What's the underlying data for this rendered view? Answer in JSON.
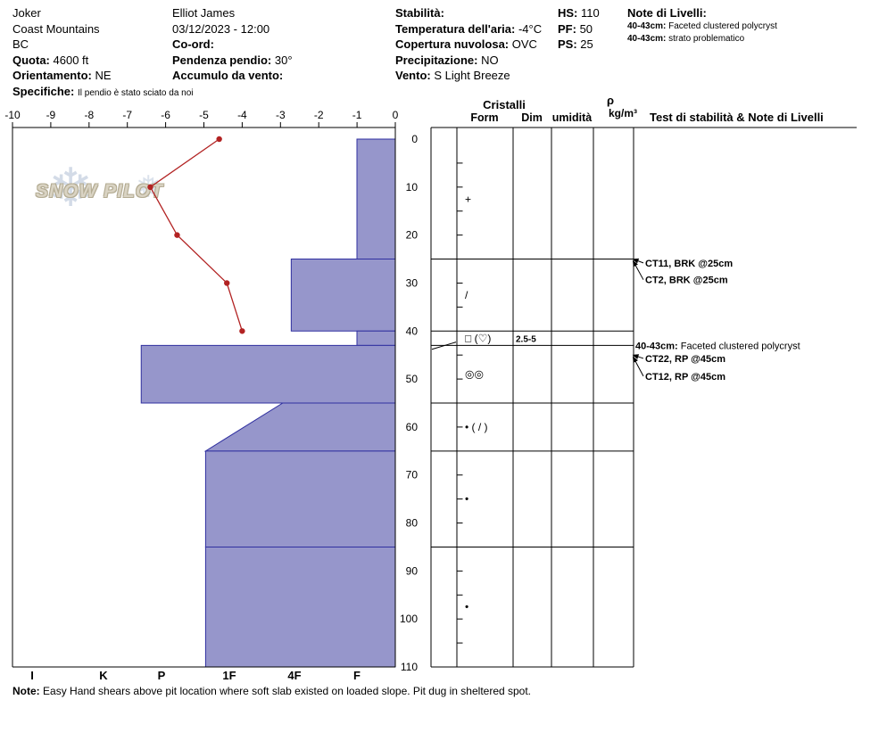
{
  "header": {
    "col1": {
      "pit_name": "Joker",
      "range": "Coast Mountains",
      "region": "BC",
      "quota_label": "Quota:",
      "quota_value": "4600 ft",
      "orient_label": "Orientamento:",
      "orient_value": "NE",
      "spec_label": "Specifiche:",
      "spec_value": "Il pendio è stato sciato da noi"
    },
    "col2": {
      "observer": "Elliot James",
      "datetime": "03/12/2023 - 12:00",
      "coord_label": "Co-ord:",
      "slope_label": "Pendenza pendio:",
      "slope_value": "30°",
      "windload_label": "Accumulo da vento:"
    },
    "col3": {
      "stability_label": "Stabilità:",
      "airtemp_label": "Temperatura dell'aria:",
      "airtemp_value": "-4°C",
      "cloud_label": "Copertura nuvolosa:",
      "cloud_value": "OVC",
      "precip_label": "Precipitazione:",
      "precip_value": "NO",
      "wind_label": "Vento:",
      "wind_value": "S Light Breeze"
    },
    "col4": {
      "hs_label": "HS:",
      "hs_value": "110",
      "pf_label": "PF:",
      "pf_value": "50",
      "ps_label": "PS:",
      "ps_value": "25"
    },
    "col5": {
      "title": "Note di Livelli:",
      "notes": [
        {
          "range": "40-43cm:",
          "text": "Faceted clustered polycryst"
        },
        {
          "range": "40-43cm:",
          "text": "strato problematico"
        }
      ]
    }
  },
  "logo": {
    "text": "SNOW PILOT"
  },
  "chart_data": {
    "type": "snow-profile",
    "hs_cm": 110,
    "temp_axis": {
      "unit": "°C",
      "min": -10,
      "max": 0,
      "ticks": [
        -10,
        -9,
        -8,
        -7,
        -6,
        -5,
        -4,
        -3,
        -2,
        -1,
        0
      ]
    },
    "depth_axis": {
      "unit": "cm",
      "min": 0,
      "max": 110,
      "labels": [
        0,
        10,
        20,
        30,
        40,
        50,
        60,
        70,
        80,
        90,
        100,
        110
      ]
    },
    "hardness_axis": {
      "categories": [
        "I",
        "K",
        "P",
        "1F",
        "4F",
        "F"
      ]
    },
    "layers": [
      {
        "top_cm": 0,
        "bottom_cm": 25,
        "hardness": "F",
        "h_top": 5.0,
        "h_bottom": 5.0
      },
      {
        "top_cm": 25,
        "bottom_cm": 40,
        "hardness": "4F",
        "h_top": 3.95,
        "h_bottom": 3.95
      },
      {
        "top_cm": 40,
        "bottom_cm": 43,
        "hardness": "F",
        "h_top": 5.0,
        "h_bottom": 5.0
      },
      {
        "top_cm": 43,
        "bottom_cm": 55,
        "hardness": "P+",
        "h_top": 1.65,
        "h_bottom": 1.65
      },
      {
        "top_cm": 55,
        "bottom_cm": 65,
        "hardness": "4F- / 1F+",
        "h_top": 3.82,
        "h_bottom": 2.65
      },
      {
        "top_cm": 65,
        "bottom_cm": 85,
        "hardness": "1F+",
        "h_top": 2.65,
        "h_bottom": 2.65
      },
      {
        "top_cm": 85,
        "bottom_cm": 110,
        "hardness": "1F+",
        "h_top": 2.65,
        "h_bottom": 2.65
      }
    ],
    "crystals": [
      {
        "form": "+",
        "dim": ""
      },
      {
        "form": "/",
        "dim": ""
      },
      {
        "form": "□ (♡)",
        "dim": "2.5-5"
      },
      {
        "form": "◎◎",
        "dim": ""
      },
      {
        "form": "• ( / )",
        "dim": ""
      },
      {
        "form": "•",
        "dim": ""
      },
      {
        "form": "•",
        "dim": ""
      }
    ],
    "temperature_profile": [
      {
        "depth_cm": 0,
        "temp_c": -4.6
      },
      {
        "depth_cm": 10,
        "temp_c": -6.4
      },
      {
        "depth_cm": 20,
        "temp_c": -5.7
      },
      {
        "depth_cm": 30,
        "temp_c": -4.4
      },
      {
        "depth_cm": 40,
        "temp_c": -4.0
      }
    ],
    "columns": {
      "cristalli": "Cristalli",
      "form": "Form",
      "dim": "Dim",
      "humidity": "umidità",
      "rho": "ρ",
      "rho_unit": "kg/m³",
      "tests": "Test di stabilità & Note di Livelli"
    },
    "tests": [
      {
        "kind": "arrow",
        "label": "CT11, BRK @25cm",
        "text_depth": 25.8,
        "target_depth": 25.0
      },
      {
        "kind": "arrow",
        "label": "CT2, BRK @25cm",
        "text_depth": 29.3,
        "target_depth": 25.4
      },
      {
        "kind": "note",
        "bold": "40-43cm:",
        "label": "Faceted clustered polycryst",
        "text_depth": 43.0,
        "leader": true
      },
      {
        "kind": "arrow",
        "label": "CT22, RP @45cm",
        "text_depth": 45.7,
        "target_depth": 45.0
      },
      {
        "kind": "arrow",
        "label": "CT12, RP @45cm",
        "text_depth": 49.4,
        "target_depth": 45.4
      }
    ],
    "colors": {
      "bar_fill": "#9696cb",
      "bar_stroke": "#3030a0",
      "temp_line": "#b22222",
      "grid": "#000000"
    }
  },
  "footer_note": {
    "label": "Note:",
    "text": "Easy Hand shears above pit location where soft slab existed on loaded slope. Pit dug in sheltered spot."
  }
}
